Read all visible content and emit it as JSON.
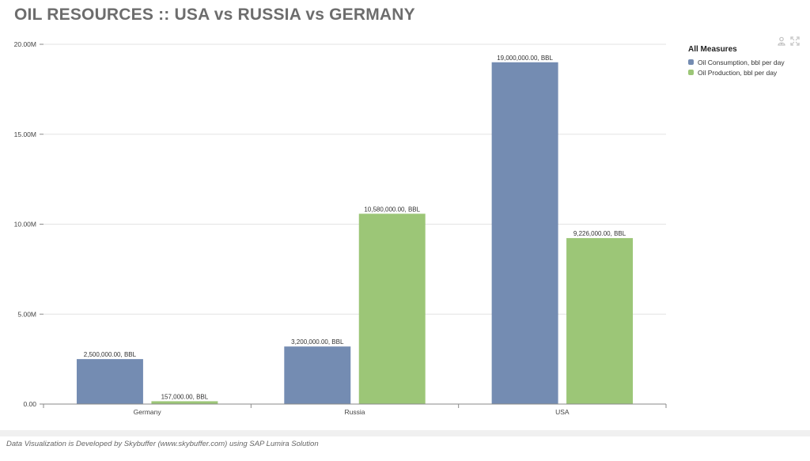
{
  "title": "OIL RESOURCES :: USA vs RUSSIA vs GERMANY",
  "footer": "Data Visualization is Developed by Skybuffer (www.skybuffer.com) using SAP Lumira Solution",
  "tools": {
    "personalize_icon": "settings-person-icon",
    "fullscreen_icon": "expand-icon"
  },
  "legend": {
    "title": "All Measures",
    "items": [
      {
        "label": "Oil Consumption, bbl per day",
        "color": "#748cb2"
      },
      {
        "label": "Oil Production, bbl per day",
        "color": "#9cc677"
      }
    ]
  },
  "chart_data": {
    "type": "bar",
    "categories": [
      "Germany",
      "Russia",
      "USA"
    ],
    "series": [
      {
        "name": "Oil Consumption, bbl per day",
        "color": "#748cb2",
        "values": [
          2500000,
          3200000,
          19000000
        ],
        "labels": [
          "2,500,000.00, BBL",
          "3,200,000.00, BBL",
          "19,000,000.00, BBL"
        ]
      },
      {
        "name": "Oil Production, bbl per day",
        "color": "#9cc677",
        "values": [
          157000,
          10580000,
          9226000
        ],
        "labels": [
          "157,000.00, BBL",
          "10,580,000.00, BBL",
          "9,226,000.00, BBL"
        ]
      }
    ],
    "yticks": [
      0,
      5000000,
      10000000,
      15000000,
      20000000
    ],
    "ytick_labels": [
      "0.00",
      "5.00M",
      "10.00M",
      "15.00M",
      "20.00M"
    ],
    "ylim": [
      0,
      20000000
    ],
    "grid": true,
    "legend_position": "top-right"
  }
}
